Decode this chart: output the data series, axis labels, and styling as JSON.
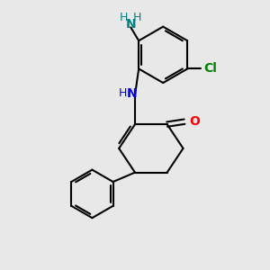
{
  "bg_color": "#e8e8e8",
  "bond_color": "#000000",
  "N_color": "#0000cd",
  "O_color": "#ff0000",
  "Cl_color": "#008000",
  "NH2_color": "#008080",
  "linewidth": 1.5,
  "figsize": [
    3.0,
    3.0
  ],
  "dpi": 100,
  "xlim": [
    0,
    10
  ],
  "ylim": [
    0,
    10
  ]
}
